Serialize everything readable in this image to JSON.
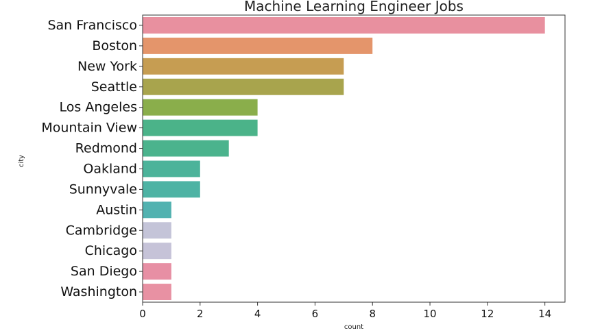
{
  "chart_data": {
    "type": "bar",
    "orientation": "horizontal",
    "title": "Machine Learning Engineer Jobs",
    "xlabel": "count",
    "ylabel": "city",
    "categories": [
      "San Francisco",
      "Boston",
      "New York",
      "Seattle",
      "Los Angeles",
      "Mountain View",
      "Redmond",
      "Oakland",
      "Sunnyvale",
      "Austin",
      "Cambridge",
      "Chicago",
      "San Diego",
      "Washington"
    ],
    "values": [
      14,
      8,
      7,
      7,
      4,
      4,
      3,
      2,
      2,
      1,
      1,
      1,
      1,
      1
    ],
    "colors": [
      "#e8909f",
      "#e4956b",
      "#c69d52",
      "#a8a44d",
      "#8aae4b",
      "#4bb389",
      "#4bb38d",
      "#4cb39a",
      "#4eb3a4",
      "#52b2b0",
      "#c4c4d8",
      "#c6c3d8",
      "#e78fa4",
      "#e891a3"
    ],
    "xlim": [
      0,
      14.7
    ],
    "xticks": [
      0,
      2,
      4,
      6,
      8,
      10,
      12,
      14
    ],
    "grid": false
  }
}
